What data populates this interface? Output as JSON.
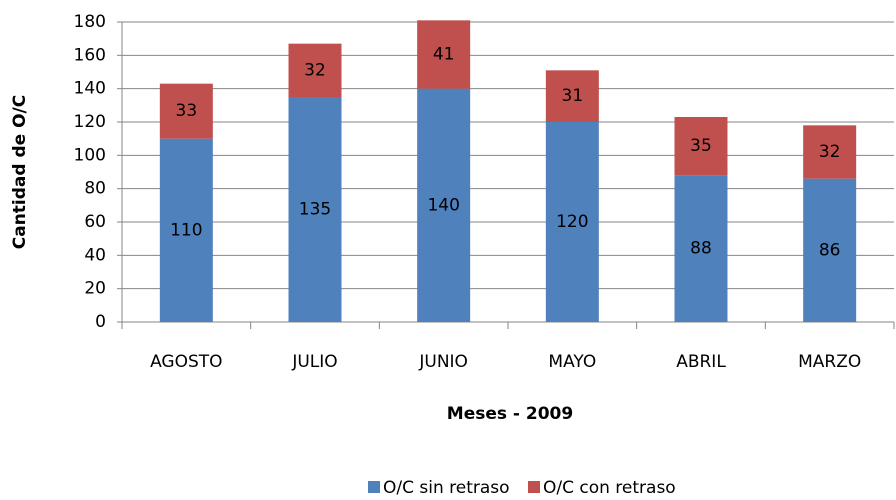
{
  "chart_data": {
    "type": "bar",
    "stacked": true,
    "y_label": "Cantidad de O/C",
    "x_label": "Meses - 2009",
    "categories": [
      "AGOSTO",
      "JULIO",
      "JUNIO",
      "MAYO",
      "ABRIL",
      "MARZO"
    ],
    "series": [
      {
        "name": "O/C sin retraso",
        "color": "#4f81bd",
        "values": [
          110,
          135,
          140,
          120,
          88,
          86
        ]
      },
      {
        "name": "O/C con retraso",
        "color": "#c0504d",
        "values": [
          33,
          32,
          41,
          31,
          35,
          32
        ]
      }
    ],
    "ylim": [
      0,
      180
    ],
    "yticks": [
      0,
      20,
      40,
      60,
      80,
      100,
      120,
      140,
      160,
      180
    ],
    "grid": true
  }
}
